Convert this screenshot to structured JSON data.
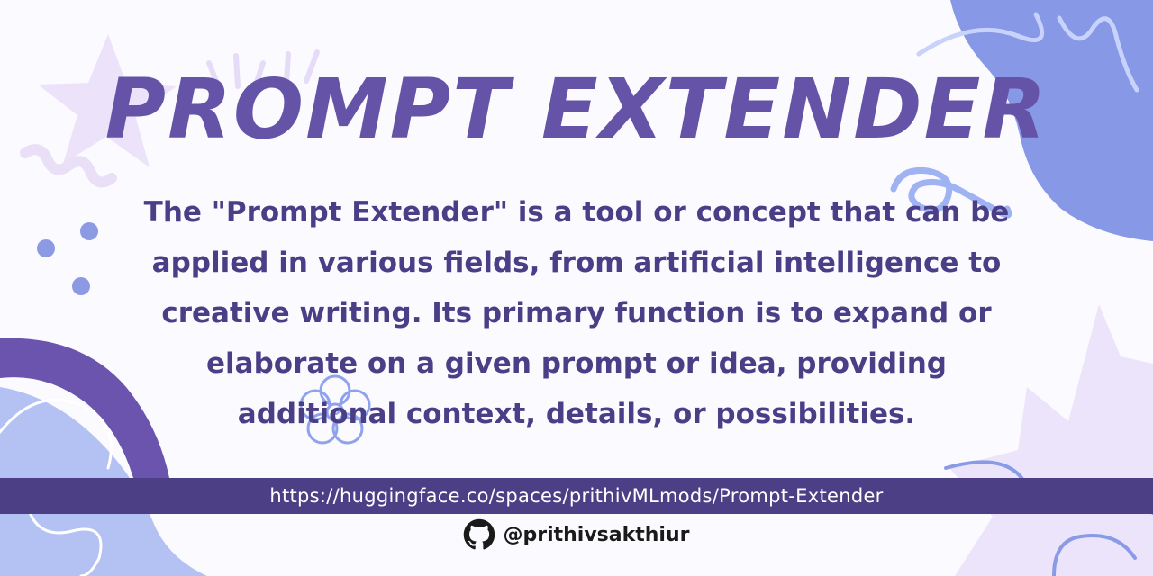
{
  "banner": {
    "title": "PROMPT EXTENDER",
    "description": "The \"Prompt Extender\" is a tool or concept that can be applied in various fields, from artificial intelligence to creative writing. Its primary function is to expand or elaborate on a given prompt or idea, providing additional context, details, or possibilities.",
    "url": "https://huggingface.co/spaces/prithivMLmods/Prompt-Extender",
    "handle": "@prithivsakthiur",
    "handle_icon": "github-icon"
  },
  "colors": {
    "title": "#6553a8",
    "text": "#4a3f86",
    "url_bar": "#4d3f85",
    "blob_blue": "#8a9be6",
    "band_purple": "#6a54ad",
    "lavender": "#e9e0fb"
  }
}
